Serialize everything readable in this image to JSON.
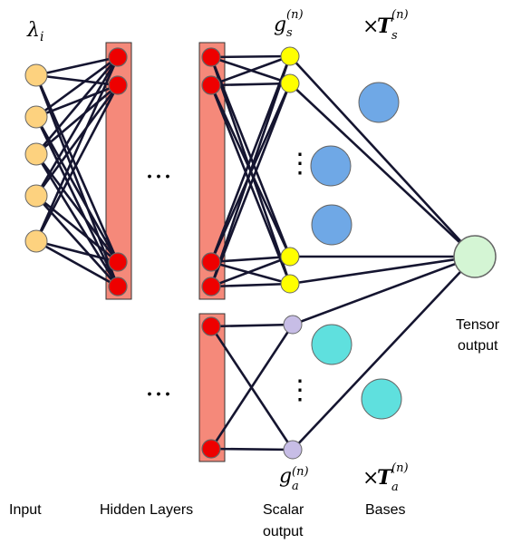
{
  "labels": {
    "input_symbol": "λ",
    "input_subscript": "i",
    "ellipsis": "…",
    "vertical_dots": "⋮",
    "gs_base": "g",
    "gs_sub": "s",
    "ga_base": "g",
    "ga_sub": "a",
    "superscript_n": "(n)",
    "times": "×",
    "ts_base": "T",
    "ts_sub": "s",
    "ta_base": "T",
    "ta_sub": "a",
    "tensor_line1": "Tensor",
    "tensor_line2": "output",
    "input": "Input",
    "hidden_layers": "Hidden Layers",
    "scalar_line1": "Scalar",
    "scalar_line2": "output",
    "bases": "Bases"
  },
  "colors": {
    "input_node": "#fdd27f",
    "hidden_node": "#ee0000",
    "hidden_bar": "#f5897a",
    "scalar_s_node": "#ffff00",
    "scalar_a_node": "#c7bde6",
    "basis_s_node": "#6fa8e6",
    "basis_a_node": "#5fe0de",
    "tensor_node": "#d4f5d4",
    "edge": "#151530"
  }
}
